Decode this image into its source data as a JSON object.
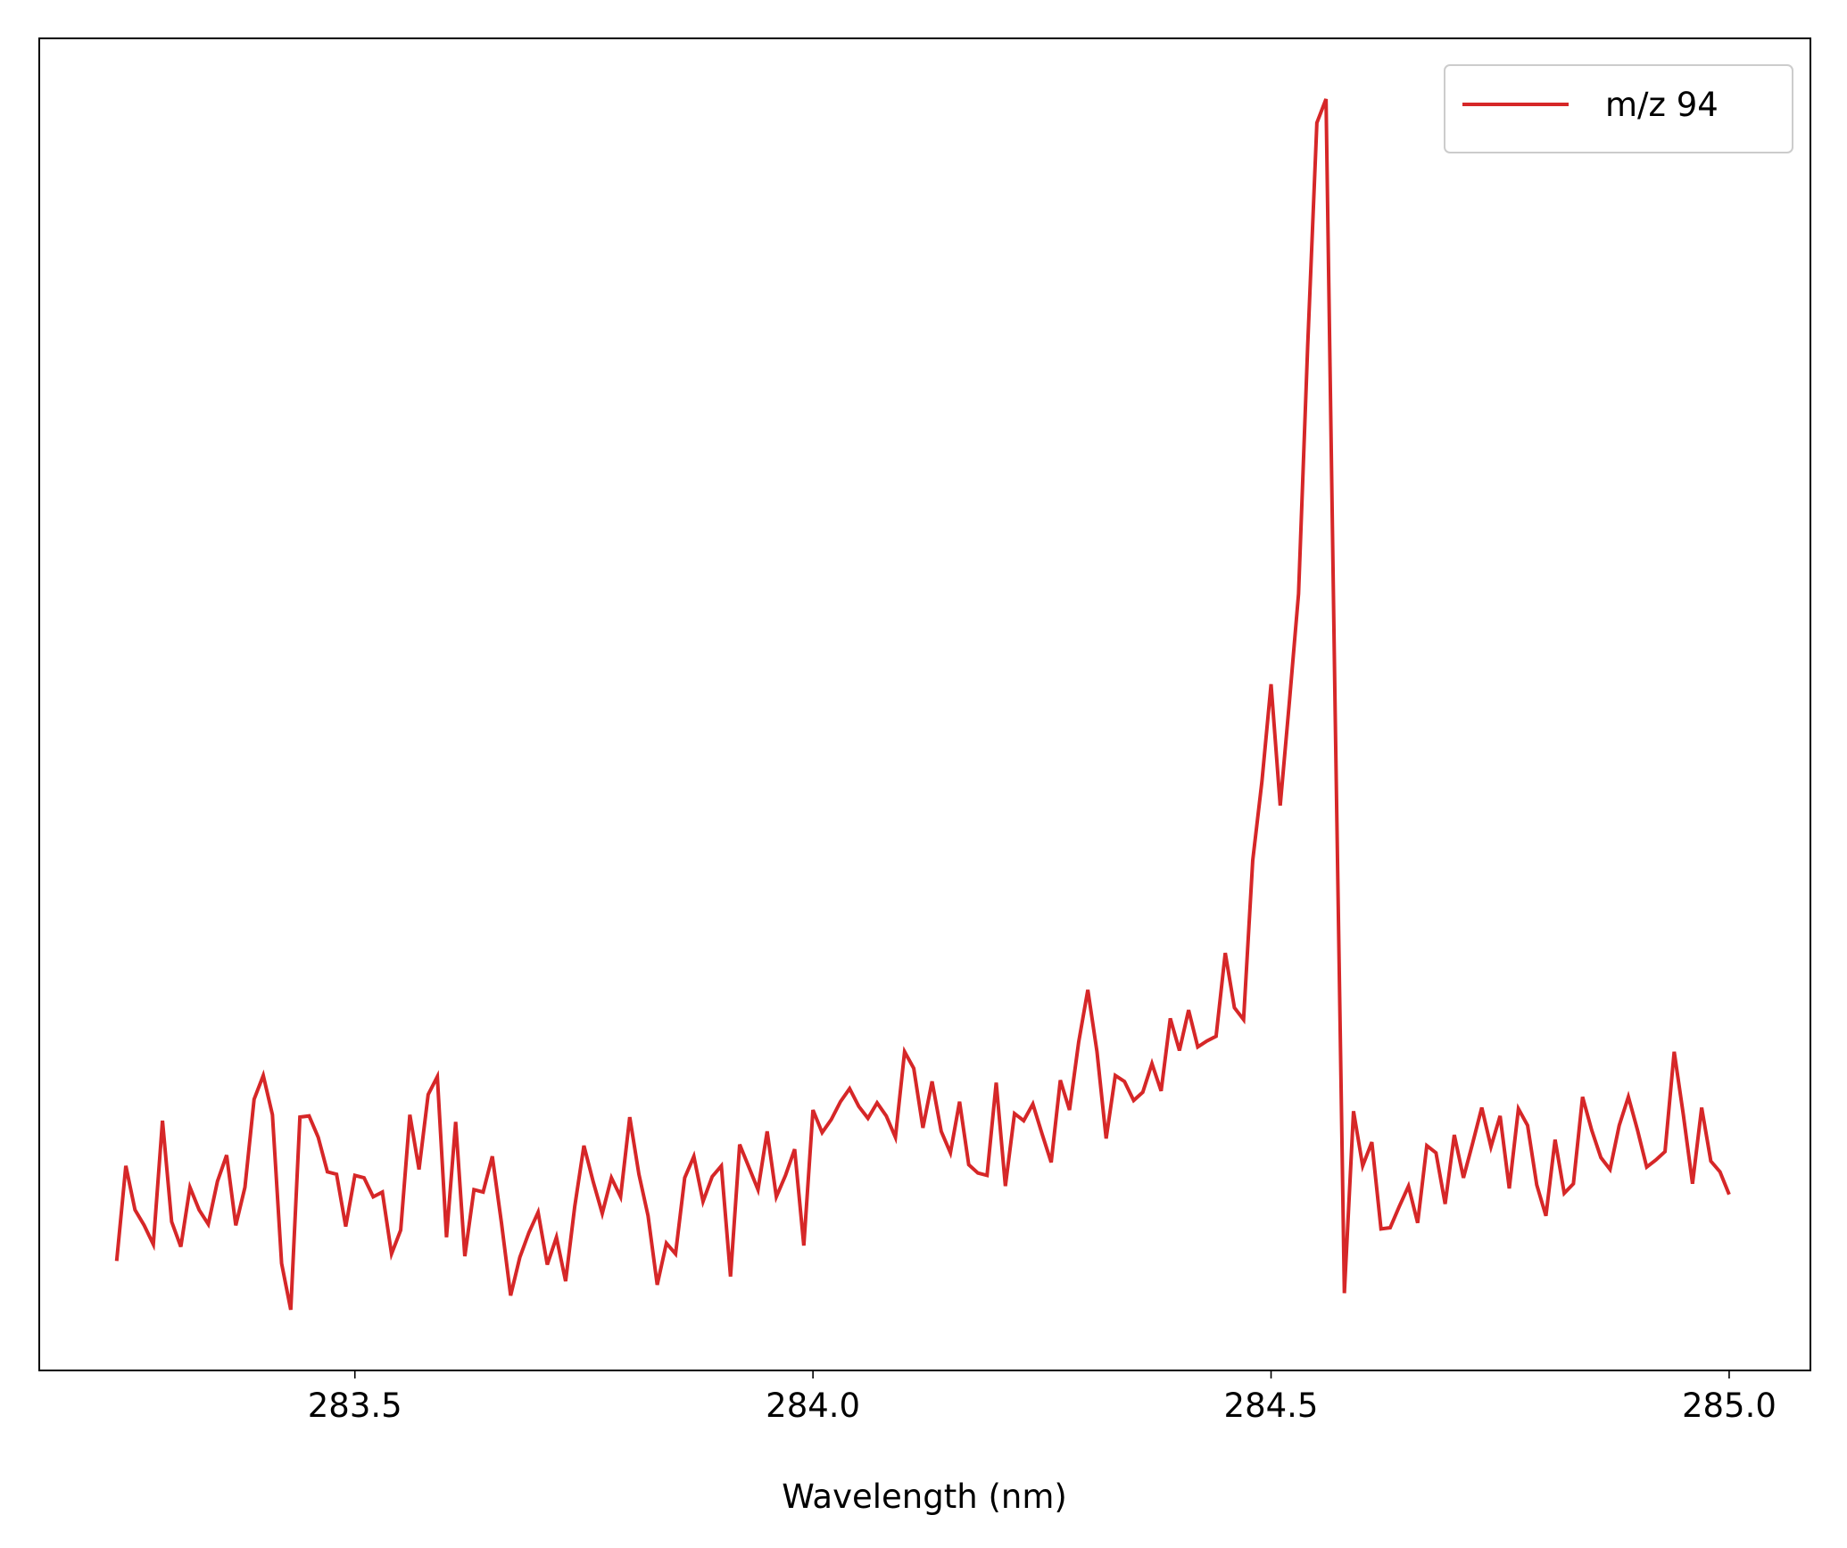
{
  "chart_data": {
    "type": "line",
    "xlabel": "Wavelength (nm)",
    "x": [
      283.24,
      283.25,
      283.26,
      283.27,
      283.28,
      283.29,
      283.3,
      283.31,
      283.32,
      283.33,
      283.34,
      283.35,
      283.36,
      283.37,
      283.38,
      283.39,
      283.4,
      283.41,
      283.42,
      283.43,
      283.44,
      283.45,
      283.46,
      283.47,
      283.48,
      283.49,
      283.5,
      283.51,
      283.52,
      283.53,
      283.54,
      283.55,
      283.56,
      283.57,
      283.58,
      283.59,
      283.6,
      283.61,
      283.62,
      283.63,
      283.64,
      283.65,
      283.66,
      283.67,
      283.68,
      283.69,
      283.7,
      283.71,
      283.72,
      283.73,
      283.74,
      283.75,
      283.76,
      283.77,
      283.78,
      283.79,
      283.8,
      283.81,
      283.82,
      283.83,
      283.84,
      283.85,
      283.86,
      283.87,
      283.88,
      283.89,
      283.9,
      283.91,
      283.92,
      283.93,
      283.94,
      283.95,
      283.96,
      283.97,
      283.98,
      283.99,
      284.0,
      284.01,
      284.02,
      284.03,
      284.04,
      284.05,
      284.06,
      284.07,
      284.08,
      284.09,
      284.1,
      284.11,
      284.12,
      284.13,
      284.14,
      284.15,
      284.16,
      284.17,
      284.18,
      284.19,
      284.2,
      284.21,
      284.22,
      284.23,
      284.24,
      284.25,
      284.26,
      284.27,
      284.28,
      284.29,
      284.3,
      284.31,
      284.32,
      284.33,
      284.34,
      284.35,
      284.36,
      284.37,
      284.38,
      284.39,
      284.4,
      284.41,
      284.42,
      284.43,
      284.44,
      284.45,
      284.46,
      284.47,
      284.48,
      284.49,
      284.5,
      284.51,
      284.52,
      284.53,
      284.54,
      284.55,
      284.56,
      284.57,
      284.58,
      284.59,
      284.6,
      284.61,
      284.62,
      284.63,
      284.64,
      284.65,
      284.66,
      284.67,
      284.68,
      284.69,
      284.7,
      284.71,
      284.72,
      284.73,
      284.74,
      284.75,
      284.76,
      284.77,
      284.78,
      284.79,
      284.8,
      284.81,
      284.82,
      284.83,
      284.84,
      284.85,
      284.86,
      284.87,
      284.88,
      284.89,
      284.9,
      284.91,
      284.92,
      284.93,
      284.94,
      284.95,
      284.96,
      284.97,
      284.98,
      284.99,
      285.0
    ],
    "series": [
      {
        "name": "m/z 94",
        "color": "#d62728",
        "values": [
          92,
          172,
          135,
          122,
          106,
          210,
          125,
          104,
          154,
          135,
          123,
          159,
          181,
          122,
          154,
          228,
          248,
          215,
          90,
          51,
          213,
          214,
          196,
          167,
          165,
          121,
          164,
          162,
          146,
          150,
          98,
          118,
          215,
          169,
          232,
          247,
          112,
          209,
          96,
          152,
          150,
          180,
          124,
          63,
          95,
          116,
          133,
          89,
          112,
          75,
          138,
          189,
          159,
          132,
          162,
          146,
          213,
          165,
          130,
          72,
          107,
          98,
          162,
          180,
          142,
          163,
          172,
          79,
          190,
          171,
          152,
          201,
          146,
          164,
          186,
          105,
          219,
          200,
          211,
          226,
          237,
          222,
          212,
          225,
          214,
          196,
          268,
          254,
          204,
          243,
          201,
          183,
          226,
          173,
          166,
          164,
          242,
          155,
          216,
          210,
          224,
          199,
          175,
          244,
          219,
          276,
          320,
          268,
          195,
          248,
          243,
          227,
          234,
          258,
          235,
          296,
          269,
          303,
          272,
          277,
          281,
          351,
          305,
          295,
          429,
          495,
          577,
          475,
          562,
          653,
          862,
          1049,
          1069,
          552,
          65,
          218,
          172,
          192,
          119,
          120,
          138,
          155,
          124,
          189,
          183,
          140,
          198,
          162,
          191,
          221,
          188,
          214,
          153,
          220,
          206,
          156,
          130,
          194,
          149,
          157,
          230,
          202,
          179,
          169,
          206,
          230,
          202,
          171,
          177,
          184,
          268,
          215,
          157,
          221,
          176,
          167,
          148
        ]
      }
    ],
    "xlim": [
      283.1555,
      285.0887
    ],
    "ylim": [
      0,
      1120
    ],
    "xticks": [
      283.5,
      {
        "value": 284,
        "label": "284.0"
      },
      284.5,
      {
        "value": 285,
        "label": "285.0"
      }
    ],
    "legend": "upper right",
    "grid": false
  }
}
